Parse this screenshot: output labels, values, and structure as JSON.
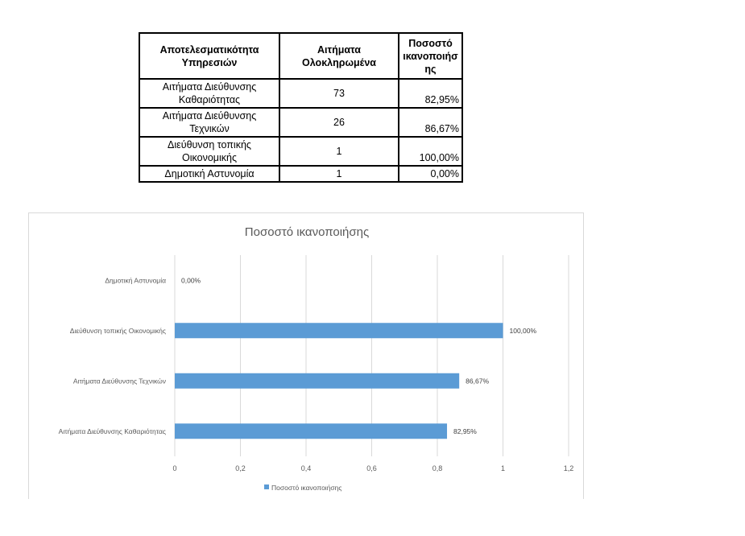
{
  "table": {
    "headers": [
      "Αποτελεσματικότητα Υπηρεσιών",
      "Αιτήματα Ολοκληρωμένα",
      "Ποσοστό ικανοποιήσ ης"
    ],
    "rows": [
      {
        "service": "Αιτήματα Διεύθυνσης Καθαριότητας",
        "completed": "73",
        "satisfaction": "82,95%"
      },
      {
        "service": "Αιτήματα Διεύθυνσης Τεχνικών",
        "completed": "26",
        "satisfaction": "86,67%"
      },
      {
        "service": "Διεύθυνση τοπικής Οικονομικής",
        "completed": "1",
        "satisfaction": "100,00%"
      },
      {
        "service": "Δημοτική Αστυνομία",
        "completed": "1",
        "satisfaction": "0,00%"
      }
    ]
  },
  "chart_data": {
    "type": "bar",
    "orientation": "horizontal",
    "title": "Ποσοστό ικανοποιήσης",
    "categories": [
      "Αιτήματα Διεύθυνσης Καθαριότητας",
      "Αιτήματα Διεύθυνσης Τεχνικών",
      "Διεύθυνση τοπικής Οικονομικής",
      "Δημοτική Αστυνομία"
    ],
    "series": [
      {
        "name": "Ποσοστό ικανοποιήσης",
        "values": [
          0.8295,
          0.8667,
          1.0,
          0.0
        ],
        "labels": [
          "82,95%",
          "86,67%",
          "100,00%",
          "0,00%"
        ]
      }
    ],
    "xlim": [
      0,
      1.2
    ],
    "xticks": [
      "0",
      "0,2",
      "0,4",
      "0,6",
      "0,8",
      "1",
      "1,2"
    ],
    "grid": true,
    "legend_position": "bottom",
    "color": "#5b9bd5"
  }
}
